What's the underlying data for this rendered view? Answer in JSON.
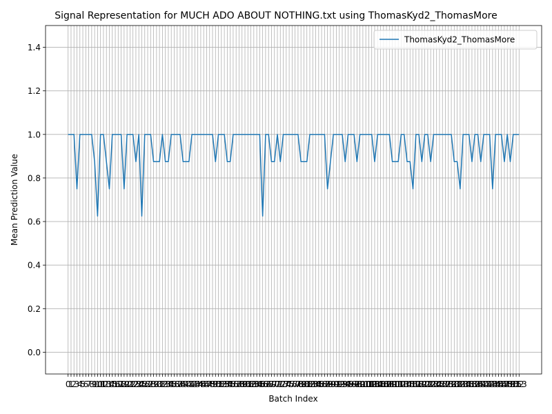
{
  "chart_data": {
    "type": "line",
    "title": "Signal Representation for MUCH ADO ABOUT NOTHING.txt using ThomasKyd2_ThomasMore",
    "xlabel": "Batch Index",
    "ylabel": "Mean Prediction Value",
    "x": [
      0,
      1,
      2,
      3,
      4,
      5,
      6,
      7,
      8,
      9,
      10,
      11,
      12,
      13,
      14,
      15,
      16,
      17,
      18,
      19,
      20,
      21,
      22,
      23,
      24,
      25,
      26,
      27,
      28,
      29,
      30,
      31,
      32,
      33,
      34,
      35,
      36,
      37,
      38,
      39,
      40,
      41,
      42,
      43,
      44,
      45,
      46,
      47,
      48,
      49,
      50,
      51,
      52,
      53,
      54,
      55,
      56,
      57,
      58,
      59,
      60,
      61,
      62,
      63,
      64,
      65,
      66,
      67,
      68,
      69,
      70,
      71,
      72,
      73,
      74,
      75,
      76,
      77,
      78,
      79,
      80,
      81,
      82,
      83,
      84,
      85,
      86,
      87,
      88,
      89,
      90,
      91,
      92,
      93,
      94,
      95,
      96,
      97,
      98,
      99,
      100,
      101,
      102,
      103,
      104,
      105,
      106,
      107,
      108,
      109,
      110,
      111,
      112,
      113,
      114,
      115,
      116,
      117,
      118,
      119,
      120,
      121,
      122,
      123,
      124,
      125,
      126,
      127,
      128,
      129,
      130,
      131,
      132,
      133,
      134,
      135,
      136,
      137,
      138,
      139,
      140,
      141,
      142,
      143,
      144,
      145,
      146,
      147,
      148,
      149,
      150,
      151,
      152,
      153
    ],
    "series": [
      {
        "name": "ThomasKyd2_ThomasMore",
        "color": "#1f77b4",
        "values": [
          1,
          1,
          1,
          0.75,
          1,
          1,
          1,
          1,
          1,
          0.875,
          0.625,
          1,
          1,
          0.875,
          0.75,
          1,
          1,
          1,
          1,
          0.75,
          1,
          1,
          1,
          0.875,
          1,
          0.625,
          1,
          1,
          1,
          0.875,
          0.875,
          0.875,
          1,
          0.875,
          0.875,
          1,
          1,
          1,
          1,
          0.875,
          0.875,
          0.875,
          1,
          1,
          1,
          1,
          1,
          1,
          1,
          1,
          0.875,
          1,
          1,
          1,
          0.875,
          0.875,
          1,
          1,
          1,
          1,
          1,
          1,
          1,
          1,
          1,
          1,
          0.625,
          1,
          1,
          0.875,
          0.875,
          1,
          0.875,
          1,
          1,
          1,
          1,
          1,
          1,
          0.875,
          0.875,
          0.875,
          1,
          1,
          1,
          1,
          1,
          1,
          0.75,
          0.875,
          1,
          1,
          1,
          1,
          0.875,
          1,
          1,
          1,
          0.875,
          1,
          1,
          1,
          1,
          1,
          0.875,
          1,
          1,
          1,
          1,
          1,
          0.875,
          0.875,
          0.875,
          1,
          1,
          0.875,
          0.875,
          0.75,
          1,
          1,
          0.875,
          1,
          1,
          0.875,
          1,
          1,
          1,
          1,
          1,
          1,
          1,
          0.875,
          0.875,
          0.75,
          1,
          1,
          1,
          0.875,
          1,
          1,
          0.875,
          1,
          1,
          1,
          0.75,
          1,
          1,
          1,
          0.875,
          1,
          0.875,
          1,
          1,
          1
        ]
      }
    ],
    "xlim": [
      -7.65,
      160.65
    ],
    "xticks": [
      0,
      1,
      2,
      3,
      4,
      5,
      6,
      7,
      8,
      9,
      10,
      11,
      12,
      13,
      14,
      15,
      16,
      17,
      18,
      19,
      20,
      21,
      22,
      23,
      24,
      25,
      26,
      27,
      28,
      29,
      30,
      31,
      32,
      33,
      34,
      35,
      36,
      37,
      38,
      39,
      40,
      41,
      42,
      43,
      44,
      45,
      46,
      47,
      48,
      49,
      50,
      51,
      52,
      53,
      54,
      55,
      56,
      57,
      58,
      59,
      60,
      61,
      62,
      63,
      64,
      65,
      66,
      67,
      68,
      69,
      70,
      71,
      72,
      73,
      74,
      75,
      76,
      77,
      78,
      79,
      80,
      81,
      82,
      83,
      84,
      85,
      86,
      87,
      88,
      89,
      90,
      91,
      92,
      93,
      94,
      95,
      96,
      97,
      98,
      99,
      100,
      101,
      102,
      103,
      104,
      105,
      106,
      107,
      108,
      109,
      110,
      111,
      112,
      113,
      114,
      115,
      116,
      117,
      118,
      119,
      120,
      121,
      122,
      123,
      124,
      125,
      126,
      127,
      128,
      129,
      130,
      131,
      132,
      133,
      134,
      135,
      136,
      137,
      138,
      139,
      140,
      141,
      142,
      143,
      144,
      145,
      146,
      147,
      148,
      149,
      150,
      151,
      152,
      153
    ],
    "ylim": [
      -0.1,
      1.5
    ],
    "yticks": [
      {
        "value": 0,
        "label": "0.0"
      },
      0.2,
      0.4,
      0.6,
      0.8,
      {
        "value": 1,
        "label": "1.0"
      },
      1.2,
      1.4
    ],
    "grid": true,
    "legend": "upper right"
  }
}
